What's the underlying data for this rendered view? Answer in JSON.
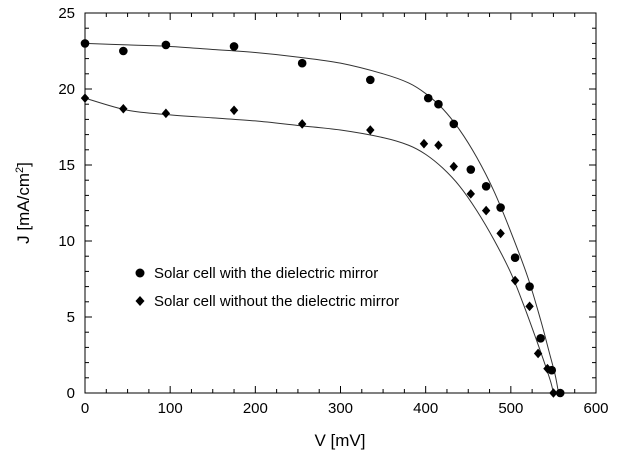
{
  "chart_data": {
    "type": "scatter",
    "xlabel": "V [mV]",
    "ylabel_main": "J [mA/cm",
    "ylabel_sup": "2",
    "ylabel_close": "]",
    "xlim": [
      0,
      600
    ],
    "ylim": [
      0,
      25
    ],
    "xticks": [
      0,
      100,
      200,
      300,
      400,
      500,
      600
    ],
    "xtick_labels": [
      "0",
      "100",
      "200",
      "300",
      "400",
      "500",
      "600"
    ],
    "yticks": [
      0,
      5,
      10,
      15,
      20,
      25
    ],
    "ytick_labels": [
      "0",
      "5",
      "10",
      "15",
      "20",
      "25"
    ],
    "grid": false,
    "legend_position": "left-middle",
    "series": [
      {
        "name": "Solar cell with the dielectric mirror",
        "marker": "circle",
        "color": "#000000",
        "points": [
          [
            0,
            23.0
          ],
          [
            45,
            22.5
          ],
          [
            95,
            22.9
          ],
          [
            175,
            22.8
          ],
          [
            255,
            21.7
          ],
          [
            335,
            20.6
          ],
          [
            403,
            19.4
          ],
          [
            415,
            19.0
          ],
          [
            433,
            17.7
          ],
          [
            453,
            14.7
          ],
          [
            471,
            13.6
          ],
          [
            488,
            12.2
          ],
          [
            505,
            8.9
          ],
          [
            522,
            7.0
          ],
          [
            535,
            3.6
          ],
          [
            548,
            1.5
          ],
          [
            558,
            0.0
          ]
        ],
        "fit": [
          [
            0,
            23.0
          ],
          [
            50,
            22.9
          ],
          [
            100,
            22.8
          ],
          [
            150,
            22.6
          ],
          [
            200,
            22.4
          ],
          [
            250,
            22.1
          ],
          [
            300,
            21.7
          ],
          [
            350,
            21.0
          ],
          [
            380,
            20.4
          ],
          [
            400,
            19.7
          ],
          [
            420,
            18.7
          ],
          [
            440,
            17.3
          ],
          [
            460,
            15.5
          ],
          [
            480,
            13.3
          ],
          [
            500,
            10.6
          ],
          [
            520,
            7.6
          ],
          [
            535,
            4.8
          ],
          [
            545,
            2.7
          ],
          [
            552,
            1.2
          ],
          [
            556,
            0.0
          ]
        ]
      },
      {
        "name": "Solar cell without the dielectric mirror",
        "marker": "diamond",
        "color": "#000000",
        "points": [
          [
            0,
            19.4
          ],
          [
            45,
            18.7
          ],
          [
            95,
            18.4
          ],
          [
            175,
            18.6
          ],
          [
            255,
            17.7
          ],
          [
            335,
            17.3
          ],
          [
            398,
            16.4
          ],
          [
            415,
            16.3
          ],
          [
            433,
            14.9
          ],
          [
            453,
            13.1
          ],
          [
            471,
            12.0
          ],
          [
            488,
            10.5
          ],
          [
            505,
            7.4
          ],
          [
            522,
            5.7
          ],
          [
            532,
            2.6
          ],
          [
            543,
            1.6
          ],
          [
            550,
            0.0
          ]
        ],
        "fit": [
          [
            0,
            19.4
          ],
          [
            50,
            18.6
          ],
          [
            100,
            18.3
          ],
          [
            150,
            18.1
          ],
          [
            200,
            17.9
          ],
          [
            250,
            17.6
          ],
          [
            300,
            17.3
          ],
          [
            350,
            16.8
          ],
          [
            380,
            16.3
          ],
          [
            400,
            15.7
          ],
          [
            420,
            14.8
          ],
          [
            440,
            13.6
          ],
          [
            460,
            12.0
          ],
          [
            480,
            10.1
          ],
          [
            500,
            7.9
          ],
          [
            515,
            5.8
          ],
          [
            530,
            3.5
          ],
          [
            540,
            1.9
          ],
          [
            547,
            0.7
          ],
          [
            550,
            0.0
          ]
        ]
      }
    ]
  }
}
